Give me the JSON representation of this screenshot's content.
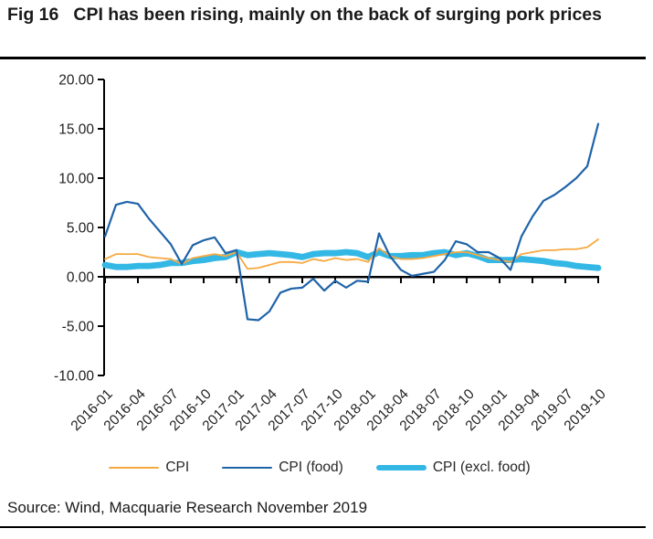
{
  "header": {
    "fig_label": "Fig 16",
    "title": "CPI has been rising, mainly on the back of surging pork prices"
  },
  "footer": {
    "source": "Source: Wind, Macquarie Research November 2019"
  },
  "colors": {
    "cpi": "#F7A941",
    "cpi_food": "#1F63A8",
    "cpi_excl_food": "#33B7E5",
    "axis": "#000000",
    "tick_text": "#1f1f1f"
  },
  "chart_data": {
    "type": "line",
    "title": "",
    "xlabel": "",
    "ylabel": "",
    "ylim": [
      -10,
      20
    ],
    "grid": false,
    "legend_position": "bottom",
    "y_ticks": [
      20,
      15,
      10,
      5,
      0,
      -5,
      -10
    ],
    "y_tick_labels": [
      "20.00",
      "15.00",
      "10.00",
      "5.00",
      "0.00",
      "-5.00",
      "-10.00"
    ],
    "x": [
      "2016-01",
      "2016-02",
      "2016-03",
      "2016-04",
      "2016-05",
      "2016-06",
      "2016-07",
      "2016-08",
      "2016-09",
      "2016-10",
      "2016-11",
      "2016-12",
      "2017-01",
      "2017-02",
      "2017-03",
      "2017-04",
      "2017-05",
      "2017-06",
      "2017-07",
      "2017-08",
      "2017-09",
      "2017-10",
      "2017-11",
      "2017-12",
      "2018-01",
      "2018-02",
      "2018-03",
      "2018-04",
      "2018-05",
      "2018-06",
      "2018-07",
      "2018-08",
      "2018-09",
      "2018-10",
      "2018-11",
      "2018-12",
      "2019-01",
      "2019-02",
      "2019-03",
      "2019-04",
      "2019-05",
      "2019-06",
      "2019-07",
      "2019-08",
      "2019-09",
      "2019-10"
    ],
    "x_tick_labels": [
      "2016-01",
      "2016-04",
      "2016-07",
      "2016-10",
      "2017-01",
      "2017-04",
      "2017-07",
      "2017-10",
      "2018-01",
      "2018-04",
      "2018-07",
      "2018-10",
      "2019-01",
      "2019-04",
      "2019-07",
      "2019-10"
    ],
    "x_tick_every_n_months": 3,
    "series": [
      {
        "name": "CPI",
        "color_key": "cpi",
        "stroke_width": 1.8,
        "values": [
          1.8,
          2.3,
          2.3,
          2.3,
          2.0,
          1.9,
          1.8,
          1.3,
          1.9,
          2.1,
          2.3,
          2.1,
          2.5,
          0.8,
          0.9,
          1.2,
          1.5,
          1.5,
          1.4,
          1.8,
          1.6,
          1.9,
          1.7,
          1.8,
          1.5,
          2.9,
          2.1,
          1.8,
          1.8,
          1.9,
          2.1,
          2.3,
          2.5,
          2.5,
          2.2,
          1.9,
          1.7,
          1.5,
          2.3,
          2.5,
          2.7,
          2.7,
          2.8,
          2.8,
          3.0,
          3.8
        ]
      },
      {
        "name": "CPI (food)",
        "color_key": "cpi_food",
        "stroke_width": 2.2,
        "values": [
          4.1,
          7.3,
          7.6,
          7.4,
          5.9,
          4.6,
          3.3,
          1.3,
          3.2,
          3.7,
          4.0,
          2.4,
          2.7,
          -4.3,
          -4.4,
          -3.5,
          -1.6,
          -1.2,
          -1.1,
          -0.2,
          -1.4,
          -0.4,
          -1.1,
          -0.4,
          -0.5,
          4.4,
          2.1,
          0.7,
          0.1,
          0.3,
          0.5,
          1.7,
          3.6,
          3.3,
          2.5,
          2.5,
          1.9,
          0.7,
          4.1,
          6.1,
          7.7,
          8.3,
          9.1,
          10.0,
          11.2,
          15.5
        ]
      },
      {
        "name": "CPI (excl. food)",
        "color_key": "cpi_excl_food",
        "stroke_width": 6.8,
        "values": [
          1.2,
          1.0,
          1.0,
          1.1,
          1.1,
          1.2,
          1.4,
          1.4,
          1.6,
          1.7,
          1.9,
          2.0,
          2.5,
          2.2,
          2.3,
          2.4,
          2.3,
          2.2,
          2.0,
          2.3,
          2.4,
          2.4,
          2.5,
          2.4,
          2.0,
          2.5,
          2.1,
          2.1,
          2.2,
          2.2,
          2.4,
          2.5,
          2.2,
          2.4,
          2.1,
          1.7,
          1.7,
          1.7,
          1.8,
          1.7,
          1.6,
          1.4,
          1.3,
          1.1,
          1.0,
          0.9
        ]
      }
    ]
  }
}
